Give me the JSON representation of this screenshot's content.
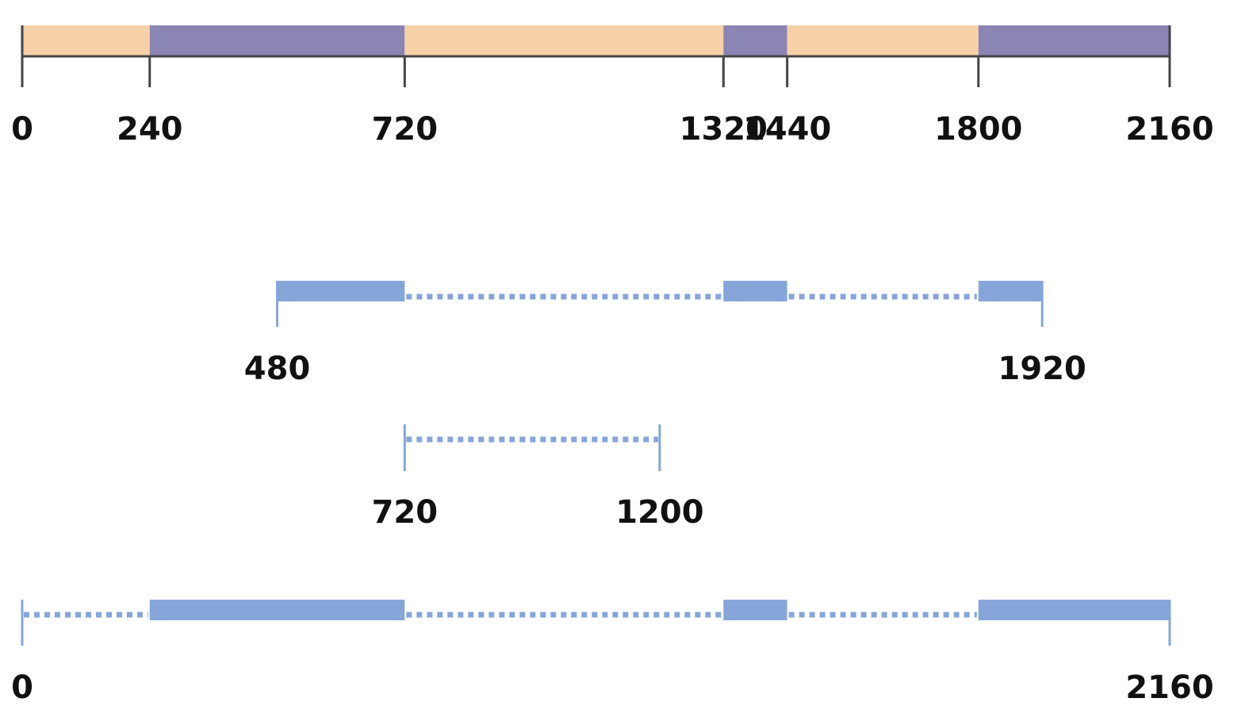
{
  "colors": {
    "active": "#8b85b4",
    "inactive": "#f6d1a8",
    "query": "#86a6da",
    "axis": "#444444",
    "text": "#111111"
  },
  "scale": {
    "min": 0,
    "max": 2160
  },
  "timeline": {
    "segments": [
      {
        "start": 0,
        "end": 240,
        "state": "inactive"
      },
      {
        "start": 240,
        "end": 720,
        "state": "active"
      },
      {
        "start": 720,
        "end": 1320,
        "state": "inactive"
      },
      {
        "start": 1320,
        "end": 1440,
        "state": "active"
      },
      {
        "start": 1440,
        "end": 1800,
        "state": "inactive"
      },
      {
        "start": 1800,
        "end": 2160,
        "state": "active"
      }
    ],
    "ticks": [
      {
        "value": 0,
        "label": "0"
      },
      {
        "value": 240,
        "label": "240"
      },
      {
        "value": 720,
        "label": "720"
      },
      {
        "value": 1320,
        "label": "1320"
      },
      {
        "value": 1440,
        "label": "1440"
      },
      {
        "value": 1800,
        "label": "1800"
      },
      {
        "value": 2160,
        "label": "2160"
      }
    ]
  },
  "ranges": [
    {
      "start": 480,
      "end": 1920,
      "start_label": "480",
      "end_label": "1920",
      "parts": [
        {
          "start": 480,
          "end": 720,
          "type": "solid"
        },
        {
          "start": 720,
          "end": 1320,
          "type": "dotted"
        },
        {
          "start": 1320,
          "end": 1440,
          "type": "solid"
        },
        {
          "start": 1440,
          "end": 1800,
          "type": "dotted"
        },
        {
          "start": 1800,
          "end": 1920,
          "type": "solid"
        }
      ]
    },
    {
      "start": 720,
      "end": 1200,
      "start_label": "720",
      "end_label": "1200",
      "parts": [
        {
          "start": 720,
          "end": 1200,
          "type": "dotted"
        }
      ]
    },
    {
      "start": 0,
      "end": 2160,
      "start_label": "0",
      "end_label": "2160",
      "parts": [
        {
          "start": 0,
          "end": 240,
          "type": "dotted"
        },
        {
          "start": 240,
          "end": 720,
          "type": "solid"
        },
        {
          "start": 720,
          "end": 1320,
          "type": "dotted"
        },
        {
          "start": 1320,
          "end": 1440,
          "type": "solid"
        },
        {
          "start": 1440,
          "end": 1800,
          "type": "dotted"
        },
        {
          "start": 1800,
          "end": 2160,
          "type": "solid"
        }
      ]
    }
  ]
}
